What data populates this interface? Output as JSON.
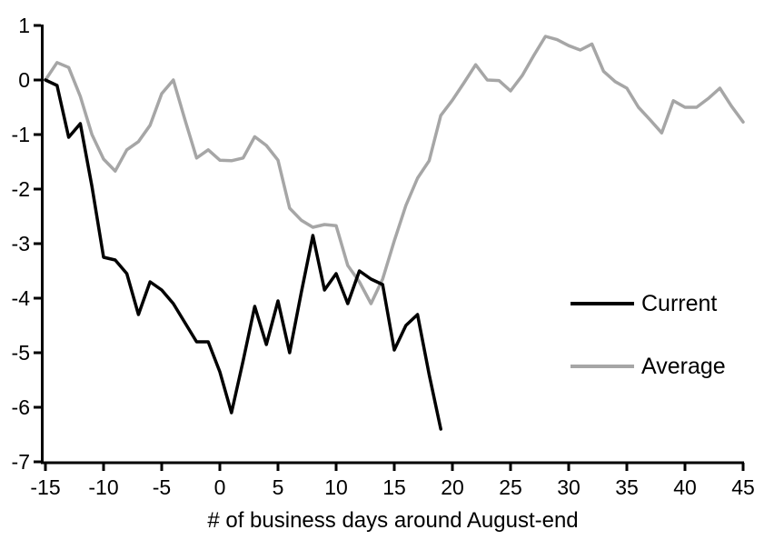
{
  "chart_data": {
    "type": "line",
    "title": "",
    "xlabel": "# of business days around August-end",
    "ylabel": "",
    "xlim": [
      -15,
      45
    ],
    "ylim": [
      -7,
      1
    ],
    "grid": false,
    "x_ticks": [
      -15,
      -10,
      -5,
      0,
      5,
      10,
      15,
      20,
      25,
      30,
      35,
      40,
      45
    ],
    "y_ticks": [
      1,
      0,
      -1,
      -2,
      -3,
      -4,
      -5,
      -6,
      -7
    ],
    "legend_position": "right-middle",
    "axis_color": "#000000",
    "series": [
      {
        "name": "Current",
        "color": "#000000",
        "x": [
          -15,
          -14,
          -13,
          -12,
          -11,
          -10,
          -9,
          -8,
          -7,
          -6,
          -5,
          -4,
          -3,
          -2,
          -1,
          0,
          1,
          2,
          3,
          4,
          5,
          6,
          7,
          8,
          9,
          10,
          11,
          12,
          13,
          14,
          15,
          16,
          17,
          18,
          19
        ],
        "values": [
          0,
          -0.1,
          -1.05,
          -0.8,
          -1.95,
          -3.25,
          -3.3,
          -3.55,
          -4.3,
          -3.7,
          -3.85,
          -4.1,
          -4.45,
          -4.8,
          -4.8,
          -5.35,
          -6.1,
          -5.15,
          -4.15,
          -4.85,
          -4.05,
          -5.0,
          -3.9,
          -2.85,
          -3.85,
          -3.55,
          -4.1,
          -3.5,
          -3.65,
          -3.75,
          -4.95,
          -4.5,
          -4.3,
          -5.4,
          -6.4
        ]
      },
      {
        "name": "Average",
        "color": "#a6a6a6",
        "x": [
          -15,
          -14,
          -13,
          -12,
          -11,
          -10,
          -9,
          -8,
          -7,
          -6,
          -5,
          -4,
          -3,
          -2,
          -1,
          0,
          1,
          2,
          3,
          4,
          5,
          6,
          7,
          8,
          9,
          10,
          11,
          12,
          13,
          14,
          15,
          16,
          17,
          18,
          19,
          20,
          21,
          22,
          23,
          24,
          25,
          26,
          27,
          28,
          29,
          30,
          31,
          32,
          33,
          34,
          35,
          36,
          37,
          38,
          39,
          40,
          41,
          42,
          43,
          44,
          45
        ],
        "values": [
          0,
          0.32,
          0.23,
          -0.3,
          -1.0,
          -1.45,
          -1.67,
          -1.28,
          -1.13,
          -0.83,
          -0.25,
          0.0,
          -0.73,
          -1.43,
          -1.28,
          -1.47,
          -1.48,
          -1.43,
          -1.04,
          -1.2,
          -1.47,
          -2.35,
          -2.57,
          -2.7,
          -2.65,
          -2.67,
          -3.4,
          -3.7,
          -4.1,
          -3.65,
          -2.95,
          -2.3,
          -1.8,
          -1.48,
          -0.65,
          -0.37,
          -0.05,
          0.28,
          0.0,
          -0.01,
          -0.2,
          0.08,
          0.45,
          0.8,
          0.74,
          0.63,
          0.55,
          0.66,
          0.16,
          -0.03,
          -0.15,
          -0.5,
          -0.73,
          -0.97,
          -0.38,
          -0.5,
          -0.5,
          -0.34,
          -0.15,
          -0.48,
          -0.77
        ]
      }
    ]
  },
  "legend": {
    "items": [
      {
        "label": "Current",
        "color": "#000000"
      },
      {
        "label": "Average",
        "color": "#a6a6a6"
      }
    ]
  }
}
